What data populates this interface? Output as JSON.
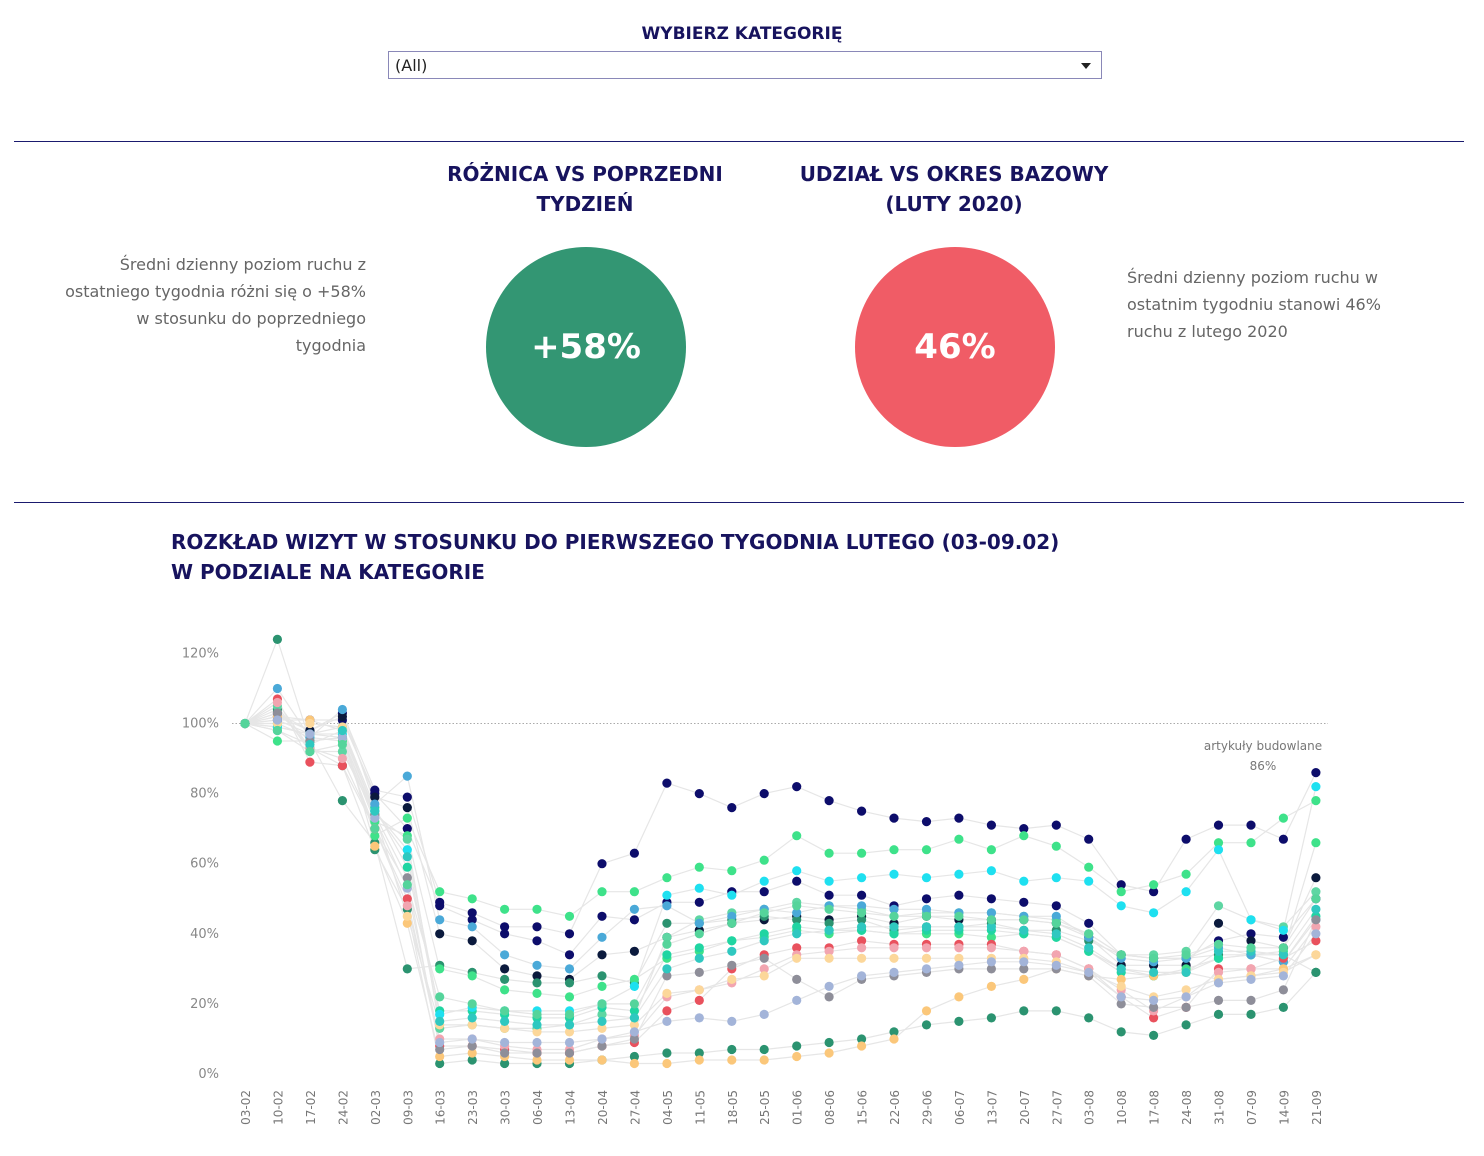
{
  "filter": {
    "title": "WYBIERZ KATEGORIĘ",
    "selected": "(All)"
  },
  "kpi_left": {
    "title_line1": "RÓŻNICA VS POPRZEDNI",
    "title_line2": "TYDZIEŃ",
    "value": "+58%",
    "color": "#339673",
    "description_lines": [
      "Średni dzienny poziom ruchu z",
      "ostatniego tygodnia różni się o +58%",
      "w stosunku do poprzedniego",
      "tygodnia"
    ]
  },
  "kpi_right": {
    "title_line1": "UDZIAŁ VS OKRES BAZOWY",
    "title_line2": "(LUTY 2020)",
    "value": "46%",
    "color": "#f05c66",
    "description_lines": [
      "Średni dzienny poziom ruchu w",
      "ostatnim tygodniu stanowi 46%",
      "ruchu z lutego 2020"
    ]
  },
  "chart": {
    "title_line1": "ROZKŁAD WIZYT W STOSUNKU DO PIERWSZEGO TYGODNIA LUTEGO (03-09.02)",
    "title_line2": "W PODZIALE NA KATEGORIE"
  },
  "chart_data": {
    "type": "scatter",
    "xlabel": "",
    "ylabel": "",
    "ylim": [
      0,
      130
    ],
    "yticks": [
      "0%",
      "20%",
      "40%",
      "60%",
      "80%",
      "100%",
      "120%"
    ],
    "reference_line": 100,
    "categories": [
      "03-02",
      "10-02",
      "17-02",
      "24-02",
      "02-03",
      "09-03",
      "16-03",
      "23-03",
      "30-03",
      "06-04",
      "13-04",
      "20-04",
      "27-04",
      "04-05",
      "11-05",
      "18-05",
      "25-05",
      "01-06",
      "08-06",
      "15-06",
      "22-06",
      "29-06",
      "06-07",
      "13-07",
      "20-07",
      "27-07",
      "03-08",
      "10-08",
      "17-08",
      "24-08",
      "31-08",
      "07-09",
      "14-09",
      "21-09"
    ],
    "highlight": {
      "label": "artykuły budowlane",
      "value_label": "86%"
    },
    "series": [
      {
        "color": "#0d0d6b",
        "values": [
          100,
          102,
          98,
          103,
          81,
          79,
          49,
          46,
          42,
          42,
          40,
          60,
          63,
          83,
          80,
          76,
          80,
          82,
          78,
          75,
          73,
          72,
          73,
          71,
          70,
          71,
          67,
          54,
          52,
          67,
          71,
          71,
          67,
          86
        ]
      },
      {
        "color": "#0d0d6b",
        "values": [
          100,
          101,
          101,
          101,
          80,
          70,
          48,
          44,
          40,
          38,
          34,
          45,
          44,
          49,
          49,
          52,
          52,
          55,
          51,
          51,
          48,
          50,
          51,
          50,
          49,
          48,
          43,
          34,
          33,
          33,
          38,
          40,
          39,
          50
        ]
      },
      {
        "color": "#0b1a3d",
        "values": [
          100,
          103,
          98,
          102,
          79,
          76,
          40,
          38,
          30,
          28,
          27,
          34,
          35,
          39,
          41,
          43,
          44,
          45,
          44,
          45,
          43,
          45,
          44,
          44,
          44,
          43,
          39,
          31,
          31,
          31,
          43,
          38,
          36,
          56
        ]
      },
      {
        "color": "#2b9370",
        "values": [
          100,
          124,
          95,
          78,
          66,
          30,
          31,
          29,
          27,
          26,
          26,
          28,
          26,
          43,
          43,
          44,
          45,
          44,
          43,
          44,
          41,
          42,
          42,
          43,
          41,
          41,
          38,
          34,
          33,
          33,
          34,
          34,
          34,
          29
        ]
      },
      {
        "color": "#2b9370",
        "values": [
          100,
          104,
          93,
          88,
          64,
          47,
          3,
          4,
          3,
          3,
          3,
          4,
          5,
          6,
          6,
          7,
          7,
          8,
          9,
          10,
          12,
          14,
          15,
          16,
          18,
          18,
          16,
          12,
          11,
          14,
          17,
          17,
          19,
          29
        ]
      },
      {
        "color": "#3ee28a",
        "values": [
          100,
          95,
          95,
          96,
          68,
          73,
          52,
          50,
          47,
          47,
          45,
          52,
          52,
          56,
          59,
          58,
          61,
          68,
          63,
          63,
          64,
          64,
          67,
          64,
          68,
          65,
          59,
          52,
          54,
          57,
          66,
          66,
          73,
          78
        ]
      },
      {
        "color": "#3ee28a",
        "values": [
          100,
          100,
          96,
          95,
          72,
          68,
          30,
          28,
          24,
          23,
          22,
          25,
          27,
          33,
          35,
          38,
          39,
          41,
          40,
          41,
          40,
          40,
          40,
          39,
          40,
          39,
          35,
          30,
          28,
          30,
          33,
          34,
          35,
          66
        ]
      },
      {
        "color": "#5ed6a3",
        "values": [
          100,
          105,
          92,
          92,
          74,
          67,
          13,
          14,
          13,
          13,
          14,
          17,
          16,
          39,
          44,
          46,
          47,
          49,
          48,
          47,
          45,
          46,
          46,
          46,
          45,
          44,
          40,
          34,
          34,
          35,
          48,
          44,
          42,
          52
        ]
      },
      {
        "color": "#20d5a2",
        "values": [
          100,
          99,
          97,
          99,
          76,
          59,
          18,
          18,
          17,
          16,
          16,
          19,
          18,
          34,
          36,
          38,
          40,
          42,
          41,
          41,
          40,
          41,
          41,
          41,
          40,
          39,
          35,
          29,
          28,
          29,
          33,
          34,
          32,
          45
        ]
      },
      {
        "color": "#1ee0f0",
        "values": [
          100,
          99,
          97,
          97,
          75,
          64,
          17,
          19,
          18,
          18,
          18,
          20,
          25,
          51,
          53,
          51,
          55,
          58,
          55,
          56,
          57,
          56,
          57,
          58,
          55,
          56,
          55,
          48,
          46,
          52,
          64,
          44,
          41,
          82
        ]
      },
      {
        "color": "#4aa9d8",
        "values": [
          100,
          110,
          96,
          104,
          77,
          85,
          44,
          42,
          34,
          31,
          30,
          39,
          47,
          48,
          43,
          45,
          47,
          46,
          48,
          48,
          47,
          47,
          46,
          46,
          45,
          45,
          39,
          33,
          32,
          33,
          36,
          34,
          32,
          44
        ]
      },
      {
        "color": "#e9515d",
        "values": [
          100,
          107,
          89,
          88,
          70,
          50,
          8,
          8,
          7,
          6,
          6,
          8,
          9,
          18,
          21,
          30,
          34,
          36,
          36,
          38,
          37,
          37,
          37,
          37,
          35,
          34,
          30,
          22,
          16,
          19,
          30,
          30,
          33,
          38
        ]
      },
      {
        "color": "#f2a5b0",
        "values": [
          100,
          106,
          93,
          90,
          70,
          48,
          10,
          10,
          8,
          7,
          7,
          10,
          11,
          22,
          24,
          26,
          30,
          34,
          35,
          36,
          36,
          36,
          36,
          36,
          35,
          34,
          30,
          24,
          18,
          22,
          29,
          30,
          30,
          42
        ]
      },
      {
        "color": "#fbc77a",
        "values": [
          100,
          102,
          101,
          98,
          65,
          43,
          5,
          6,
          5,
          4,
          4,
          4,
          3,
          3,
          4,
          4,
          4,
          5,
          6,
          8,
          10,
          18,
          22,
          25,
          27,
          30,
          28,
          27,
          28,
          29,
          27,
          28,
          30,
          34
        ]
      },
      {
        "color": "#fcd79a",
        "values": [
          100,
          100,
          100,
          99,
          74,
          45,
          14,
          14,
          13,
          12,
          12,
          13,
          14,
          23,
          24,
          27,
          28,
          33,
          33,
          33,
          33,
          33,
          33,
          33,
          33,
          32,
          29,
          25,
          22,
          24,
          27,
          28,
          29,
          34
        ]
      },
      {
        "color": "#8e8e99",
        "values": [
          100,
          103,
          95,
          96,
          74,
          56,
          7,
          8,
          6,
          6,
          6,
          8,
          10,
          28,
          29,
          31,
          33,
          27,
          22,
          27,
          28,
          29,
          30,
          30,
          30,
          30,
          28,
          20,
          19,
          19,
          21,
          21,
          24,
          44
        ]
      },
      {
        "color": "#a3b4d9",
        "values": [
          100,
          101,
          97,
          96,
          73,
          53,
          9,
          10,
          9,
          9,
          9,
          10,
          12,
          15,
          16,
          15,
          17,
          21,
          25,
          28,
          29,
          30,
          31,
          32,
          32,
          31,
          29,
          22,
          21,
          22,
          26,
          27,
          28,
          40
        ]
      },
      {
        "color": "#2fc8c0",
        "values": [
          100,
          98,
          94,
          98,
          75,
          62,
          15,
          16,
          15,
          14,
          14,
          15,
          16,
          30,
          33,
          35,
          38,
          40,
          41,
          42,
          42,
          42,
          42,
          42,
          41,
          40,
          36,
          30,
          29,
          29,
          35,
          35,
          34,
          47
        ]
      },
      {
        "color": "#55d49b",
        "values": [
          100,
          98,
          92,
          94,
          70,
          54,
          22,
          20,
          18,
          17,
          17,
          20,
          20,
          37,
          40,
          43,
          46,
          48,
          47,
          46,
          45,
          45,
          45,
          44,
          44,
          43,
          40,
          34,
          33,
          34,
          37,
          36,
          36,
          50
        ]
      }
    ]
  }
}
